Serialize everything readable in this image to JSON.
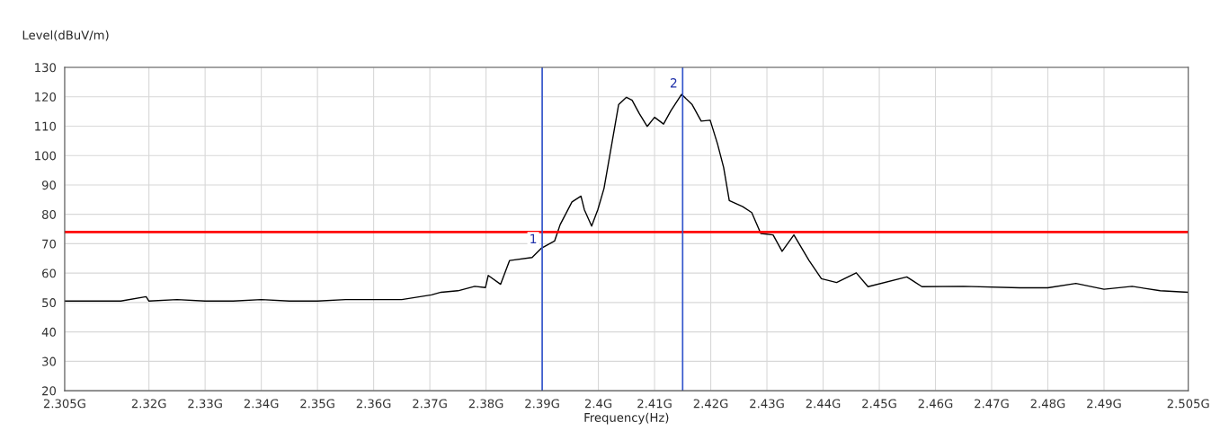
{
  "chart_data": {
    "type": "line",
    "xlabel": "Frequency(Hz)",
    "ylabel": "Level(dBuV/m)",
    "series": [
      {
        "color": "#000000",
        "x": [
          2.305,
          2.31,
          2.315,
          2.3195,
          2.32,
          2.325,
          2.33,
          2.335,
          2.34,
          2.345,
          2.35,
          2.355,
          2.36,
          2.365,
          2.3703,
          2.372,
          2.375,
          2.378,
          2.3799,
          2.3804,
          2.3826,
          2.3842,
          2.3882,
          2.3898,
          2.3922,
          2.3932,
          2.3953,
          2.3969,
          2.3975,
          2.3988,
          2.3999,
          2.401,
          2.4023,
          2.4036,
          2.405,
          2.406,
          2.4073,
          2.4087,
          2.41,
          2.4116,
          2.4129,
          2.4148,
          2.4167,
          2.4183,
          2.4199,
          2.4212,
          2.4223,
          2.4233,
          2.4257,
          2.4273,
          2.4289,
          2.4311,
          2.4327,
          2.4348,
          2.4375,
          2.4397,
          2.4424,
          2.4459,
          2.448,
          2.4549,
          2.4576,
          2.465,
          2.475,
          2.48,
          2.485,
          2.49,
          2.495,
          2.5,
          2.505
        ],
        "values": [
          50.5,
          50.5,
          50.5,
          52,
          50.5,
          51,
          50.5,
          50.5,
          51,
          50.5,
          50.5,
          51,
          51,
          51,
          52.6,
          53.5,
          54,
          55.5,
          55.1,
          59.2,
          56.2,
          64.3,
          65.3,
          68.4,
          70.9,
          76.5,
          84.2,
          86.2,
          81.6,
          76,
          81.6,
          88.8,
          103,
          117.3,
          119.8,
          118.8,
          114.2,
          109.9,
          113,
          110.7,
          115.2,
          120.8,
          117.3,
          111.7,
          112,
          104,
          95.9,
          84.7,
          82.6,
          80.6,
          73.5,
          73,
          67.4,
          73,
          64.3,
          58.1,
          56.8,
          60.1,
          55.4,
          58.7,
          55.4,
          55.5,
          55,
          55,
          56.5,
          54.5,
          55.5,
          54,
          53.5
        ]
      }
    ],
    "xlim": [
      2.305,
      2.505
    ],
    "xticks": [
      {
        "value": 2.305,
        "label": "2.305G"
      },
      {
        "value": 2.32,
        "label": "2.32G"
      },
      {
        "value": 2.33,
        "label": "2.33G"
      },
      {
        "value": 2.34,
        "label": "2.34G"
      },
      {
        "value": 2.35,
        "label": "2.35G"
      },
      {
        "value": 2.36,
        "label": "2.36G"
      },
      {
        "value": 2.37,
        "label": "2.37G"
      },
      {
        "value": 2.38,
        "label": "2.38G"
      },
      {
        "value": 2.39,
        "label": "2.39G"
      },
      {
        "value": 2.4,
        "label": "2.4G"
      },
      {
        "value": 2.41,
        "label": "2.41G"
      },
      {
        "value": 2.42,
        "label": "2.42G"
      },
      {
        "value": 2.43,
        "label": "2.43G"
      },
      {
        "value": 2.44,
        "label": "2.44G"
      },
      {
        "value": 2.45,
        "label": "2.45G"
      },
      {
        "value": 2.46,
        "label": "2.46G"
      },
      {
        "value": 2.47,
        "label": "2.47G"
      },
      {
        "value": 2.48,
        "label": "2.48G"
      },
      {
        "value": 2.49,
        "label": "2.49G"
      },
      {
        "value": 2.505,
        "label": "2.505G"
      }
    ],
    "ylim": [
      20,
      130
    ],
    "yticks": [
      20,
      30,
      40,
      50,
      60,
      70,
      80,
      90,
      100,
      110,
      120,
      130
    ],
    "ref_lines": [
      {
        "axis": "y",
        "value": 74,
        "color": "#ff0000"
      },
      {
        "axis": "x",
        "value": 2.39,
        "color": "#3355cc"
      },
      {
        "axis": "x",
        "value": 2.415,
        "color": "#3355cc"
      }
    ],
    "annotations": [
      {
        "text": "1",
        "x": 2.39,
        "y": 68
      },
      {
        "text": "2",
        "x": 2.415,
        "y": 121
      }
    ],
    "grid": true,
    "legend": false
  }
}
